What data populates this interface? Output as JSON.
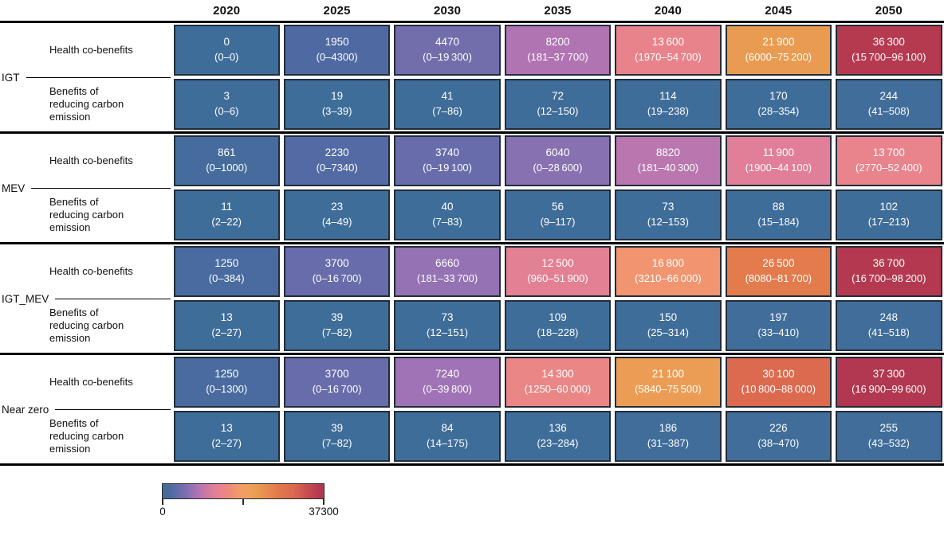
{
  "chart_data": {
    "type": "heatmap",
    "columns": [
      "2020",
      "2025",
      "2030",
      "2035",
      "2040",
      "2045",
      "2050"
    ],
    "row_sublabels": [
      "Health co-benefits",
      "Benefits of reducing carbon emission"
    ],
    "groups": [
      {
        "label": "IGT",
        "rows": [
          {
            "label": "Health co-benefits",
            "cells": [
              {
                "v": 0,
                "value": "0",
                "range": "(0–0)"
              },
              {
                "v": 1950,
                "value": "1950",
                "range": "(0–4300)"
              },
              {
                "v": 4470,
                "value": "4470",
                "range": "(0–19 300)"
              },
              {
                "v": 8200,
                "value": "8200",
                "range": "(181–37 700)"
              },
              {
                "v": 13600,
                "value": "13 600",
                "range": "(1970–54 700)"
              },
              {
                "v": 21900,
                "value": "21 900",
                "range": "(6000–75 200)"
              },
              {
                "v": 36300,
                "value": "36 300",
                "range": "(15 700–96 100)"
              }
            ]
          },
          {
            "label": "Benefits of reducing carbon emission",
            "cells": [
              {
                "v": 3,
                "value": "3",
                "range": "(0–6)"
              },
              {
                "v": 19,
                "value": "19",
                "range": "(3–39)"
              },
              {
                "v": 41,
                "value": "41",
                "range": "(7–86)"
              },
              {
                "v": 72,
                "value": "72",
                "range": "(12–150)"
              },
              {
                "v": 114,
                "value": "114",
                "range": "(19–238)"
              },
              {
                "v": 170,
                "value": "170",
                "range": "(28–354)"
              },
              {
                "v": 244,
                "value": "244",
                "range": "(41–508)"
              }
            ]
          }
        ]
      },
      {
        "label": "MEV",
        "rows": [
          {
            "label": "Health co-benefits",
            "cells": [
              {
                "v": 861,
                "value": "861",
                "range": "(0–1000)"
              },
              {
                "v": 2230,
                "value": "2230",
                "range": "(0–7340)"
              },
              {
                "v": 3740,
                "value": "3740",
                "range": "(0–19 100)"
              },
              {
                "v": 6040,
                "value": "6040",
                "range": "(0–28 600)"
              },
              {
                "v": 8820,
                "value": "8820",
                "range": "(181–40 300)"
              },
              {
                "v": 11900,
                "value": "11 900",
                "range": "(1900–44 100)"
              },
              {
                "v": 13700,
                "value": "13 700",
                "range": "(2770–52 400)"
              }
            ]
          },
          {
            "label": "Benefits of reducing carbon emission",
            "cells": [
              {
                "v": 11,
                "value": "11",
                "range": "(2–22)"
              },
              {
                "v": 23,
                "value": "23",
                "range": "(4–49)"
              },
              {
                "v": 40,
                "value": "40",
                "range": "(7–83)"
              },
              {
                "v": 56,
                "value": "56",
                "range": "(9–117)"
              },
              {
                "v": 73,
                "value": "73",
                "range": "(12–153)"
              },
              {
                "v": 88,
                "value": "88",
                "range": "(15–184)"
              },
              {
                "v": 102,
                "value": "102",
                "range": "(17–213)"
              }
            ]
          }
        ]
      },
      {
        "label": "IGT_MEV",
        "rows": [
          {
            "label": "Health co-benefits",
            "cells": [
              {
                "v": 1250,
                "value": "1250",
                "range": "(0–384)"
              },
              {
                "v": 3700,
                "value": "3700",
                "range": "(0–16 700)"
              },
              {
                "v": 6660,
                "value": "6660",
                "range": "(181–33 700)"
              },
              {
                "v": 12500,
                "value": "12 500",
                "range": "(960–51 900)"
              },
              {
                "v": 16800,
                "value": "16 800",
                "range": "(3210–66 000)"
              },
              {
                "v": 26500,
                "value": "26 500",
                "range": "(8080–81 700)"
              },
              {
                "v": 36700,
                "value": "36 700",
                "range": "(16 700–98 200)"
              }
            ]
          },
          {
            "label": "Benefits of reducing carbon emission",
            "cells": [
              {
                "v": 13,
                "value": "13",
                "range": "(2–27)"
              },
              {
                "v": 39,
                "value": "39",
                "range": "(7–82)"
              },
              {
                "v": 73,
                "value": "73",
                "range": "(12–151)"
              },
              {
                "v": 109,
                "value": "109",
                "range": "(18–228)"
              },
              {
                "v": 150,
                "value": "150",
                "range": "(25–314)"
              },
              {
                "v": 197,
                "value": "197",
                "range": "(33–410)"
              },
              {
                "v": 248,
                "value": "248",
                "range": "(41–518)"
              }
            ]
          }
        ]
      },
      {
        "label": "Near zero",
        "rows": [
          {
            "label": "Health co-benefits",
            "cells": [
              {
                "v": 1250,
                "value": "1250",
                "range": "(0–1300)"
              },
              {
                "v": 3700,
                "value": "3700",
                "range": "(0–16 700)"
              },
              {
                "v": 7240,
                "value": "7240",
                "range": "(0–39 800)"
              },
              {
                "v": 14300,
                "value": "14 300",
                "range": "(1250–60 000)"
              },
              {
                "v": 21100,
                "value": "21 100",
                "range": "(5840–75 500)"
              },
              {
                "v": 30100,
                "value": "30 100",
                "range": "(10 800–88 000)"
              },
              {
                "v": 37300,
                "value": "37 300",
                "range": "(16 900–99 600)"
              }
            ]
          },
          {
            "label": "Benefits of reducing carbon emission",
            "cells": [
              {
                "v": 13,
                "value": "13",
                "range": "(2–27)"
              },
              {
                "v": 39,
                "value": "39",
                "range": "(7–82)"
              },
              {
                "v": 84,
                "value": "84",
                "range": "(14–175)"
              },
              {
                "v": 136,
                "value": "136",
                "range": "(23–284)"
              },
              {
                "v": 186,
                "value": "186",
                "range": "(31–387)"
              },
              {
                "v": 226,
                "value": "226",
                "range": "(38–470)"
              },
              {
                "v": 255,
                "value": "255",
                "range": "(43–532)"
              }
            ]
          }
        ]
      }
    ],
    "legend": {
      "min_label": "0",
      "max_label": "37300",
      "vmin": 0,
      "vmax": 37300
    },
    "colormap": [
      [
        0.0,
        "#3e6d99"
      ],
      [
        0.05,
        "#4e6aa2"
      ],
      [
        0.1,
        "#686caa"
      ],
      [
        0.15,
        "#8070b0"
      ],
      [
        0.19,
        "#9c73b5"
      ],
      [
        0.23,
        "#b775b1"
      ],
      [
        0.28,
        "#d07aa0"
      ],
      [
        0.32,
        "#e07f97"
      ],
      [
        0.37,
        "#e9838b"
      ],
      [
        0.42,
        "#ee8d79"
      ],
      [
        0.47,
        "#f29a6a"
      ],
      [
        0.53,
        "#f0a15c"
      ],
      [
        0.59,
        "#e99b50"
      ],
      [
        0.66,
        "#e6884f"
      ],
      [
        0.72,
        "#e3784d"
      ],
      [
        0.81,
        "#dc6a4f"
      ],
      [
        0.88,
        "#cc5250"
      ],
      [
        0.97,
        "#b53a50"
      ],
      [
        1.0,
        "#b23750"
      ]
    ],
    "cell_text_color": "#ffffff",
    "cell_border_color": "#232c38"
  }
}
